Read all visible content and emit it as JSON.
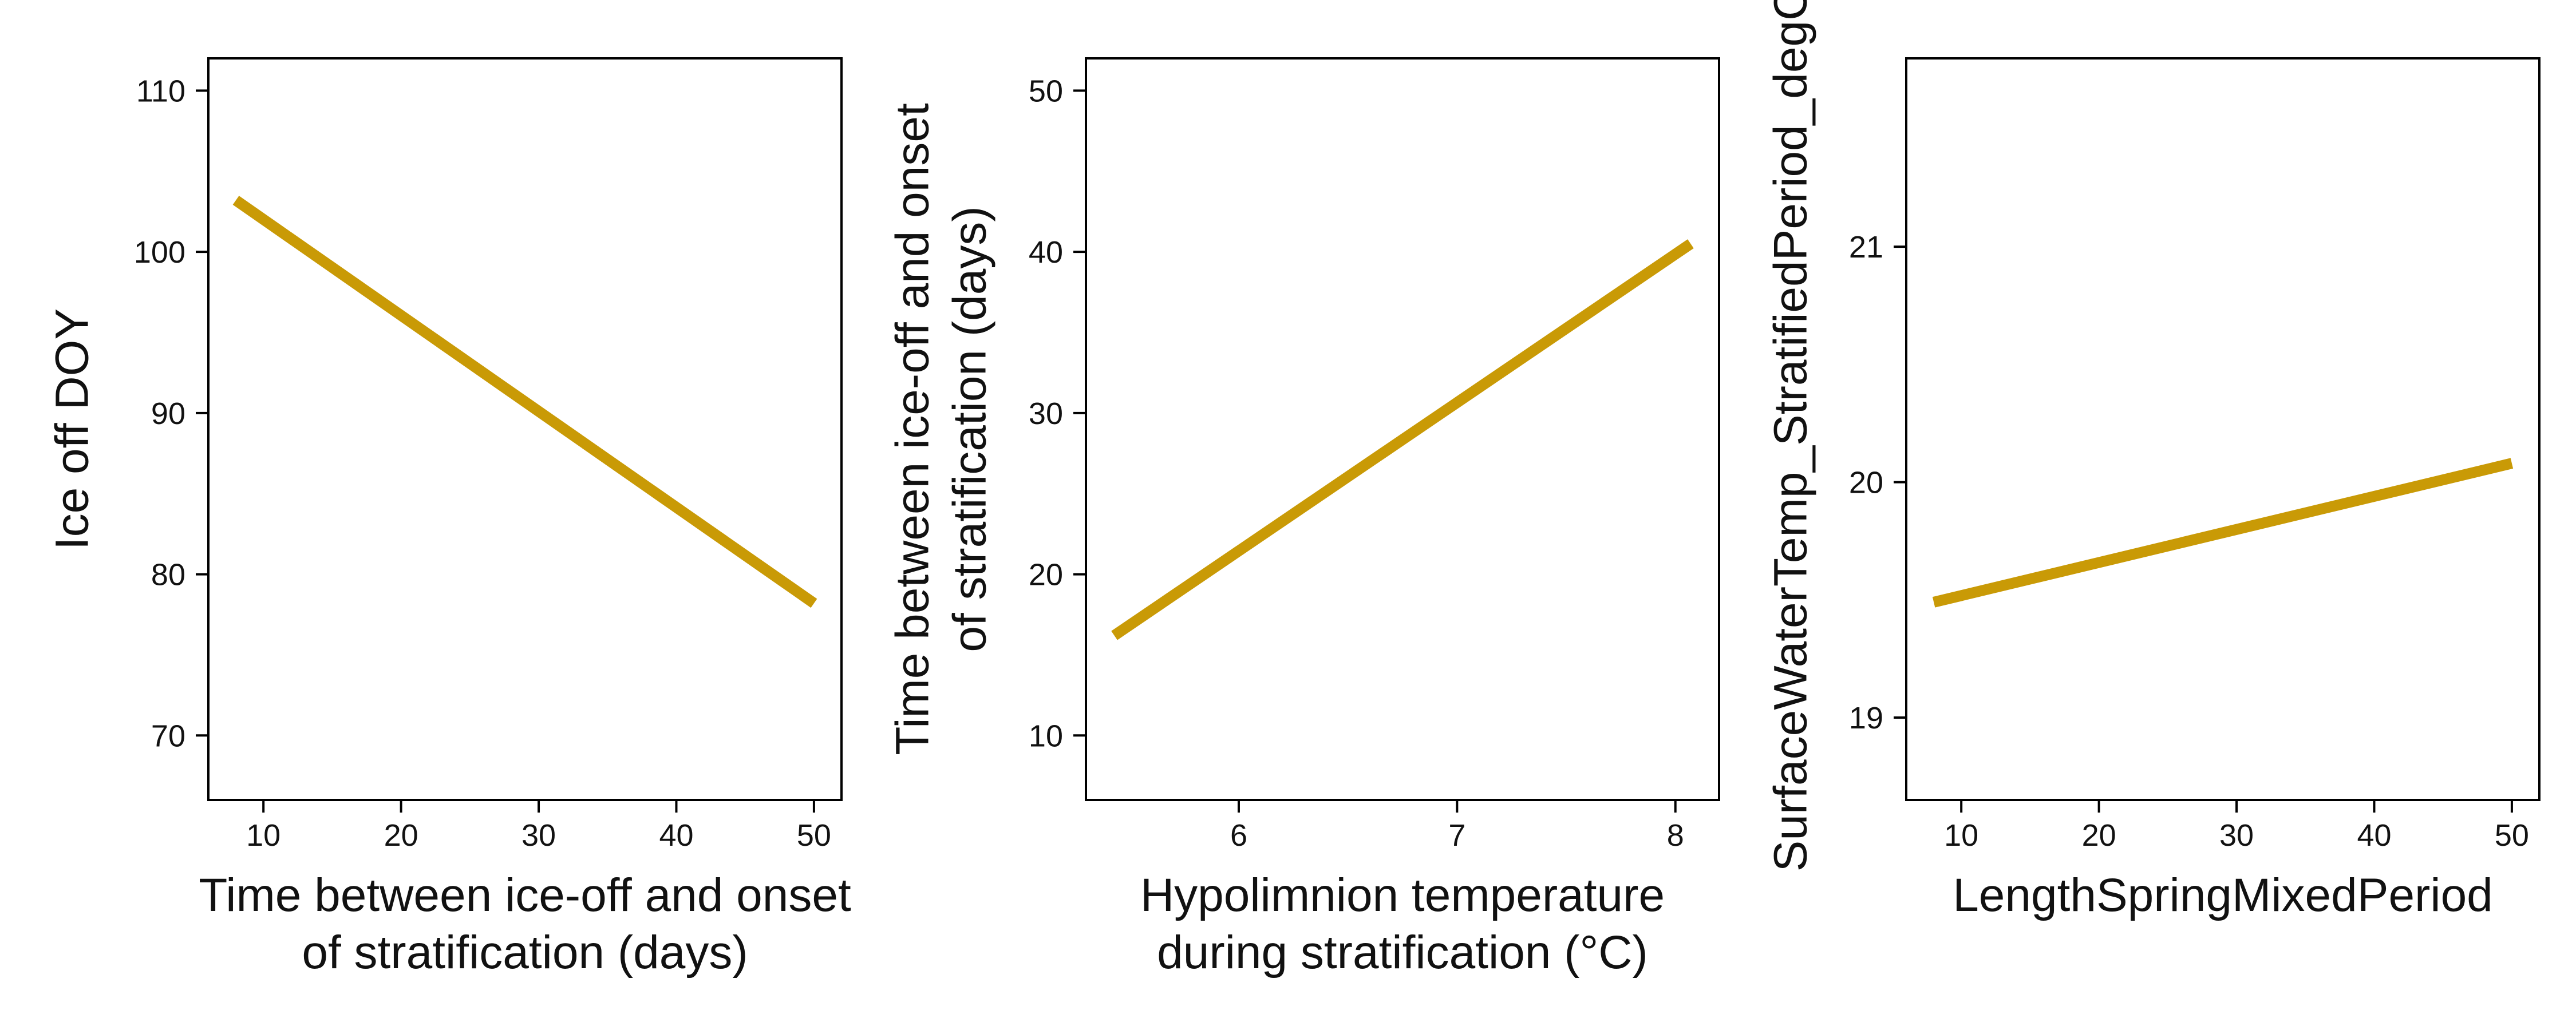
{
  "chart_data": [
    {
      "type": "line",
      "xlabel": [
        "Time between ice-off and onset",
        "of stratification (days)"
      ],
      "ylabel": [
        "Ice off DOY"
      ],
      "xlim": [
        6,
        52
      ],
      "ylim": [
        66,
        112
      ],
      "xticks": [
        10,
        20,
        30,
        40,
        50
      ],
      "yticks": [
        70,
        80,
        90,
        100,
        110
      ],
      "grid": false,
      "series": [
        {
          "x": [
            8,
            50
          ],
          "y": [
            103.2,
            78.2
          ],
          "color": "#C99A06"
        }
      ]
    },
    {
      "type": "line",
      "xlabel": [
        "Hypolimnion temperature",
        "during stratification (°C)"
      ],
      "ylabel": [
        "Time between ice-off and onset",
        "of stratification (days)"
      ],
      "xlim": [
        5.3,
        8.2
      ],
      "ylim": [
        6,
        52
      ],
      "xticks": [
        6,
        7,
        8
      ],
      "yticks": [
        10,
        20,
        30,
        40,
        50
      ],
      "grid": false,
      "series": [
        {
          "x": [
            5.43,
            8.07
          ],
          "y": [
            16.2,
            40.5
          ],
          "color": "#C99A06"
        }
      ]
    },
    {
      "type": "line",
      "xlabel": [
        "LengthSpringMixedPeriod"
      ],
      "ylabel": [
        "SurfaceWaterTemp_StratifiedPeriod_degC"
      ],
      "xlim": [
        6,
        52
      ],
      "ylim": [
        18.65,
        21.8
      ],
      "xticks": [
        10,
        20,
        30,
        40,
        50
      ],
      "yticks": [
        19,
        20,
        21
      ],
      "grid": false,
      "series": [
        {
          "x": [
            8,
            50
          ],
          "y": [
            19.49,
            20.08
          ],
          "color": "#C99A06"
        }
      ]
    }
  ]
}
